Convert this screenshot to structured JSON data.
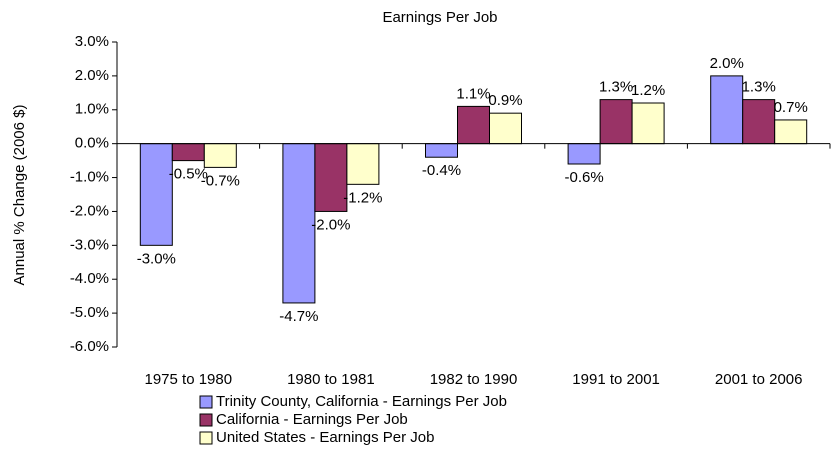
{
  "chart_data": {
    "type": "bar",
    "title": "Earnings Per Job",
    "y_label": "Annual % Change (2006 $)",
    "categories": [
      "1975 to 1980",
      "1980 to 1981",
      "1982 to 1990",
      "1991 to 2001",
      "2001 to 2006"
    ],
    "series": [
      {
        "name": "Trinity County, California - Earnings Per Job",
        "color": "#9999ff",
        "values": [
          -3.0,
          -4.7,
          -0.4,
          -0.6,
          2.0
        ],
        "value_labels": [
          "-3.0%",
          "-4.7%",
          "-0.4%",
          "-0.6%",
          "2.0%"
        ]
      },
      {
        "name": "California - Earnings Per Job",
        "color": "#993366",
        "values": [
          -0.5,
          -2.0,
          1.1,
          1.3,
          1.3
        ],
        "value_labels": [
          "-0.5%",
          "-2.0%",
          "1.1%",
          "1.3%",
          "1.3%"
        ]
      },
      {
        "name": "United States - Earnings Per Job",
        "color": "#ffffcc",
        "values": [
          -0.7,
          -1.2,
          0.9,
          1.2,
          0.7
        ],
        "value_labels": [
          "-0.7%",
          "-1.2%",
          "0.9%",
          "1.2%",
          "0.7%"
        ]
      }
    ],
    "ylim": [
      -6,
      3
    ],
    "yticks": [
      {
        "value": -6,
        "label": "-6.0%"
      },
      {
        "value": -5,
        "label": "-5.0%"
      },
      {
        "value": -4,
        "label": "-4.0%"
      },
      {
        "value": -3,
        "label": "-3.0%"
      },
      {
        "value": -2,
        "label": "-2.0%"
      },
      {
        "value": -1,
        "label": "-1.0%"
      },
      {
        "value": 0,
        "label": "0.0%"
      },
      {
        "value": 1,
        "label": "1.0%"
      },
      {
        "value": 2,
        "label": "2.0%"
      },
      {
        "value": 3,
        "label": "3.0%"
      }
    ],
    "grid": false,
    "legend": "bottom"
  }
}
